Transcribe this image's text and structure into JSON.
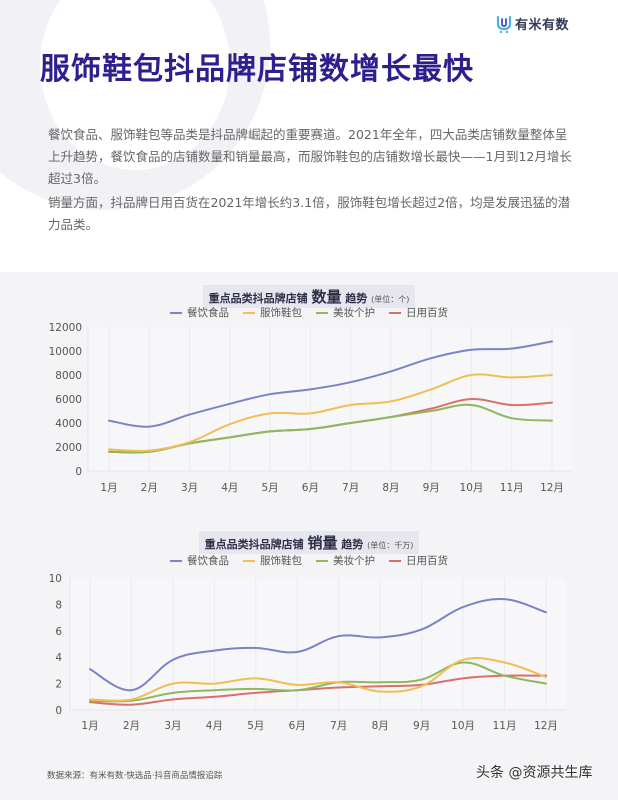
{
  "header": {
    "logo_text": "有米有数",
    "title": "服饰鞋包抖品牌店铺数增长最快"
  },
  "body": {
    "paragraph1": "餐饮食品、服饰鞋包等品类是抖品牌崛起的重要赛道。2021年全年，四大品类店铺数量整体呈上升趋势，餐饮食品的店铺数量和销量最高，而服饰鞋包的店铺数增长最快——1月到12月增长超过3倍。",
    "paragraph2": "销量方面，抖品牌日用百货在2021年增长约3.1倍，服饰鞋包增长超过2倍，均是发展迅猛的潜力品类。"
  },
  "colors": {
    "title": "#2d1f8e",
    "series": [
      "#7b83c8",
      "#f2bd55",
      "#8fb85c",
      "#d9706b"
    ]
  },
  "chart_data": [
    {
      "type": "line",
      "title": "重点品类抖品牌店铺 数量 趋势",
      "title_prefix": "重点品类抖品牌店铺 ",
      "title_emph": "数量",
      "title_suffix": " 趋势 ",
      "unit": "(单位：个)",
      "xlabel": "",
      "ylabel": "",
      "categories": [
        "1月",
        "2月",
        "3月",
        "4月",
        "5月",
        "6月",
        "7月",
        "8月",
        "9月",
        "10月",
        "11月",
        "12月"
      ],
      "yticks": [
        "0",
        "2000",
        "4000",
        "6000",
        "8000",
        "10000",
        "12000"
      ],
      "ylim": [
        0,
        12000
      ],
      "grid": "vertical",
      "legend_position": "top",
      "series": [
        {
          "name": "餐饮食品",
          "values": [
            4200,
            3700,
            4700,
            5600,
            6400,
            6800,
            7400,
            8300,
            9400,
            10100,
            10200,
            10800
          ]
        },
        {
          "name": "服饰鞋包",
          "values": [
            1800,
            1700,
            2400,
            3900,
            4800,
            4800,
            5500,
            5800,
            6800,
            8000,
            7800,
            8000
          ]
        },
        {
          "name": "美妆个护",
          "values": [
            1600,
            1600,
            2300,
            2800,
            3300,
            3500,
            4000,
            4500,
            5000,
            5500,
            4400,
            4200
          ]
        },
        {
          "name": "日用百货",
          "values": [
            1600,
            1600,
            2300,
            2800,
            3300,
            3500,
            4000,
            4500,
            5200,
            6000,
            5500,
            5700
          ]
        }
      ]
    },
    {
      "type": "line",
      "title": "重点品类抖品牌店铺 销量 趋势",
      "title_prefix": "重点品类抖品牌店铺 ",
      "title_emph": "销量",
      "title_suffix": " 趋势 ",
      "unit": "(单位：千万)",
      "xlabel": "",
      "ylabel": "",
      "categories": [
        "1月",
        "2月",
        "3月",
        "4月",
        "5月",
        "6月",
        "7月",
        "8月",
        "9月",
        "10月",
        "11月",
        "12月"
      ],
      "yticks": [
        "0",
        "2",
        "4",
        "6",
        "8",
        "10"
      ],
      "ylim": [
        0,
        10
      ],
      "grid": "vertical",
      "legend_position": "top",
      "series": [
        {
          "name": "餐饮食品",
          "values": [
            3.1,
            1.5,
            3.8,
            4.5,
            4.7,
            4.4,
            5.6,
            5.5,
            6.1,
            7.8,
            8.4,
            7.4
          ]
        },
        {
          "name": "服饰鞋包",
          "values": [
            0.8,
            0.8,
            2.0,
            2.0,
            2.4,
            1.9,
            2.1,
            1.4,
            1.8,
            3.8,
            3.6,
            2.5
          ]
        },
        {
          "name": "美妆个护",
          "values": [
            0.7,
            0.7,
            1.3,
            1.5,
            1.6,
            1.5,
            2.1,
            2.1,
            2.3,
            3.6,
            2.6,
            2.0
          ]
        },
        {
          "name": "日用百货",
          "values": [
            0.6,
            0.4,
            0.8,
            1.0,
            1.3,
            1.5,
            1.7,
            1.8,
            1.9,
            2.4,
            2.6,
            2.6
          ]
        }
      ]
    }
  ],
  "footer": {
    "source": "数据来源：有米有数·快选品·抖音商品情报追踪",
    "watermark": "头条 @资源共生库"
  }
}
